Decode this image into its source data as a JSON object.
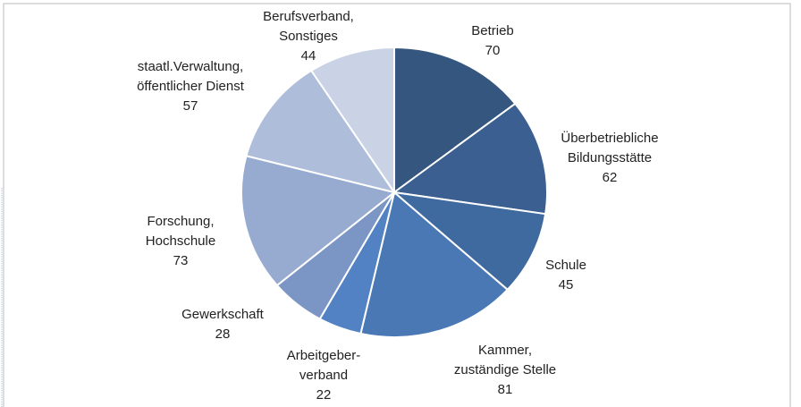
{
  "chart_data": {
    "type": "pie",
    "categories": [
      [
        "Betrieb"
      ],
      [
        "Überbetriebliche",
        "Bildungsstätte"
      ],
      [
        "Schule"
      ],
      [
        "Kammer,",
        "zuständige Stelle"
      ],
      [
        "Arbeitgeber-",
        "verband"
      ],
      [
        "Gewerkschaft"
      ],
      [
        "Forschung,",
        "Hochschule"
      ],
      [
        "staatl.Verwaltung,",
        "öffentlicher Dienst"
      ],
      [
        "Berufsverband,",
        "Sonstiges"
      ]
    ],
    "values": [
      70,
      62,
      45,
      81,
      22,
      28,
      73,
      57,
      44
    ],
    "colors": [
      "#35577f",
      "#3b5f91",
      "#3f6aa0",
      "#4a78b5",
      "#5282c3",
      "#7b96c4",
      "#97abd0",
      "#adbdda",
      "#c9d3e5"
    ]
  }
}
